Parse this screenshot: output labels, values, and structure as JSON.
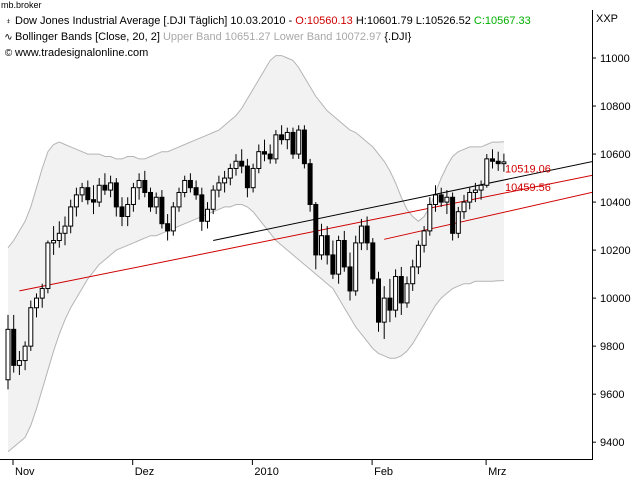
{
  "window": {
    "title": "mb.broker"
  },
  "header": {
    "line1": {
      "name": "Dow Jones Industrial Average [.DJI  Täglich] 10.03.2010 - ",
      "open": "O:10560.13",
      "high": " H:10601.79",
      "low": " L:10526.52",
      "close": " C:10567.33"
    },
    "line2": {
      "name": "Bollinger Bands [Close, 20, 2]",
      "values": " Upper Band 10651.27 Lower Band 10072.97",
      "symbol": " {.DJI}"
    },
    "line3": {
      "url": "www.tradesignalonline.com"
    }
  },
  "axis_label": "XXP",
  "chart_data": {
    "type": "candlestick",
    "ylim": [
      9330,
      11200
    ],
    "yticks": [
      9400,
      9600,
      9800,
      10000,
      10200,
      10400,
      10600,
      10800,
      11000
    ],
    "xtick_labels": [
      {
        "label": "Nov",
        "index": 0
      },
      {
        "label": "Dez",
        "index": 21
      },
      {
        "label": "2010",
        "index": 42
      },
      {
        "label": "Feb",
        "index": 63
      },
      {
        "label": "Mrz",
        "index": 83
      }
    ],
    "candles": [
      [
        9660,
        9930,
        9620,
        9870
      ],
      [
        9870,
        9930,
        9690,
        9720
      ],
      [
        9720,
        9780,
        9680,
        9740
      ],
      [
        9740,
        9820,
        9700,
        9800
      ],
      [
        9800,
        9990,
        9780,
        9960
      ],
      [
        9960,
        10020,
        9920,
        10000
      ],
      [
        10000,
        10060,
        9960,
        10040
      ],
      [
        10040,
        10240,
        10020,
        10230
      ],
      [
        10230,
        10300,
        10180,
        10240
      ],
      [
        10240,
        10320,
        10210,
        10270
      ],
      [
        10270,
        10340,
        10220,
        10300
      ],
      [
        10300,
        10410,
        10270,
        10380
      ],
      [
        10380,
        10460,
        10340,
        10430
      ],
      [
        10430,
        10480,
        10400,
        10460
      ],
      [
        10460,
        10490,
        10390,
        10410
      ],
      [
        10410,
        10470,
        10350,
        10400
      ],
      [
        10400,
        10500,
        10380,
        10470
      ],
      [
        10470,
        10520,
        10430,
        10450
      ],
      [
        10450,
        10510,
        10420,
        10480
      ],
      [
        10480,
        10500,
        10340,
        10380
      ],
      [
        10380,
        10420,
        10300,
        10340
      ],
      [
        10340,
        10420,
        10300,
        10390
      ],
      [
        10390,
        10480,
        10360,
        10460
      ],
      [
        10460,
        10520,
        10410,
        10490
      ],
      [
        10490,
        10530,
        10420,
        10440
      ],
      [
        10440,
        10460,
        10360,
        10380
      ],
      [
        10380,
        10440,
        10350,
        10420
      ],
      [
        10420,
        10450,
        10290,
        10310
      ],
      [
        10310,
        10350,
        10240,
        10280
      ],
      [
        10280,
        10400,
        10260,
        10380
      ],
      [
        10380,
        10460,
        10360,
        10440
      ],
      [
        10440,
        10510,
        10420,
        10490
      ],
      [
        10490,
        10520,
        10440,
        10460
      ],
      [
        10460,
        10490,
        10410,
        10430
      ],
      [
        10430,
        10460,
        10280,
        10320
      ],
      [
        10320,
        10400,
        10290,
        10370
      ],
      [
        10370,
        10470,
        10350,
        10450
      ],
      [
        10450,
        10510,
        10420,
        10480
      ],
      [
        10480,
        10530,
        10440,
        10500
      ],
      [
        10500,
        10560,
        10470,
        10540
      ],
      [
        10540,
        10600,
        10510,
        10570
      ],
      [
        10570,
        10620,
        10520,
        10550
      ],
      [
        10550,
        10580,
        10420,
        10460
      ],
      [
        10460,
        10560,
        10440,
        10540
      ],
      [
        10540,
        10640,
        10520,
        10610
      ],
      [
        10610,
        10660,
        10570,
        10600
      ],
      [
        10600,
        10640,
        10560,
        10580
      ],
      [
        10580,
        10700,
        10560,
        10680
      ],
      [
        10680,
        10720,
        10640,
        10660
      ],
      [
        10660,
        10710,
        10620,
        10690
      ],
      [
        10690,
        10710,
        10580,
        10600
      ],
      [
        10600,
        10720,
        10580,
        10700
      ],
      [
        10700,
        10720,
        10540,
        10560
      ],
      [
        10560,
        10580,
        10360,
        10390
      ],
      [
        10390,
        10400,
        10120,
        10180
      ],
      [
        10180,
        10310,
        10160,
        10260
      ],
      [
        10260,
        10300,
        10140,
        10180
      ],
      [
        10180,
        10240,
        10080,
        10100
      ],
      [
        10100,
        10260,
        10060,
        10240
      ],
      [
        10240,
        10280,
        10110,
        10130
      ],
      [
        10130,
        10190,
        9990,
        10030
      ],
      [
        10030,
        10260,
        10010,
        10230
      ],
      [
        10230,
        10330,
        10200,
        10300
      ],
      [
        10300,
        10340,
        10200,
        10230
      ],
      [
        10230,
        10250,
        10060,
        10080
      ],
      [
        10080,
        10110,
        9860,
        9900
      ],
      [
        9900,
        10050,
        9830,
        10000
      ],
      [
        10000,
        10080,
        9900,
        9950
      ],
      [
        9950,
        10120,
        9920,
        10090
      ],
      [
        10090,
        10130,
        9930,
        9980
      ],
      [
        9980,
        10090,
        9960,
        10060
      ],
      [
        10060,
        10160,
        10030,
        10130
      ],
      [
        10130,
        10240,
        10100,
        10220
      ],
      [
        10220,
        10300,
        10190,
        10280
      ],
      [
        10280,
        10420,
        10260,
        10390
      ],
      [
        10390,
        10470,
        10360,
        10430
      ],
      [
        10430,
        10460,
        10380,
        10400
      ],
      [
        10400,
        10450,
        10350,
        10420
      ],
      [
        10420,
        10440,
        10240,
        10270
      ],
      [
        10270,
        10380,
        10250,
        10360
      ],
      [
        10360,
        10430,
        10330,
        10400
      ],
      [
        10400,
        10460,
        10370,
        10440
      ],
      [
        10440,
        10480,
        10400,
        10450
      ],
      [
        10450,
        10490,
        10410,
        10470
      ],
      [
        10470,
        10600,
        10460,
        10580
      ],
      [
        10580,
        10620,
        10540,
        10570
      ],
      [
        10570,
        10610,
        10530,
        10560
      ],
      [
        10560,
        10601.79,
        10526.52,
        10567.33
      ]
    ],
    "bollinger": {
      "upper": [
        10210,
        10240,
        10280,
        10320,
        10380,
        10460,
        10540,
        10610,
        10640,
        10650,
        10640,
        10630,
        10620,
        10610,
        10600,
        10600,
        10600,
        10590,
        10590,
        10580,
        10580,
        10590,
        10590,
        10580,
        10580,
        10590,
        10600,
        10610,
        10610,
        10620,
        10630,
        10640,
        10650,
        10660,
        10670,
        10680,
        10690,
        10700,
        10720,
        10740,
        10760,
        10790,
        10830,
        10870,
        10910,
        10950,
        10990,
        11010,
        11010,
        11000,
        10990,
        10960,
        10920,
        10880,
        10840,
        10810,
        10780,
        10760,
        10740,
        10720,
        10700,
        10690,
        10670,
        10650,
        10630,
        10600,
        10570,
        10530,
        10480,
        10420,
        10370,
        10340,
        10320,
        10340,
        10380,
        10440,
        10500,
        10550,
        10590,
        10610,
        10620,
        10630,
        10630,
        10630,
        10640,
        10650,
        10650,
        10651.27
      ],
      "lower": [
        9360,
        9380,
        9400,
        9420,
        9470,
        9540,
        9620,
        9700,
        9780,
        9850,
        9910,
        9960,
        10000,
        10040,
        10080,
        10110,
        10140,
        10160,
        10180,
        10200,
        10210,
        10220,
        10230,
        10240,
        10250,
        10260,
        10260,
        10270,
        10280,
        10290,
        10300,
        10310,
        10320,
        10330,
        10340,
        10350,
        10360,
        10370,
        10380,
        10380,
        10390,
        10390,
        10380,
        10360,
        10330,
        10300,
        10270,
        10240,
        10220,
        10200,
        10180,
        10160,
        10140,
        10120,
        10100,
        10080,
        10060,
        10040,
        10000,
        9960,
        9920,
        9880,
        9850,
        9820,
        9790,
        9770,
        9760,
        9750,
        9750,
        9760,
        9780,
        9810,
        9850,
        9890,
        9930,
        9970,
        10000,
        10020,
        10040,
        10050,
        10060,
        10060,
        10070,
        10070,
        10070,
        10070,
        10072,
        10072.97
      ]
    },
    "trendlines": [
      {
        "color": "#000000",
        "from": [
          36,
          10240
        ],
        "to": [
          121,
          10660
        ]
      },
      {
        "color": "#d00000",
        "from": [
          2,
          10030
        ],
        "to": [
          121,
          10600
        ]
      },
      {
        "color": "#d00000",
        "from": [
          66,
          10245
        ],
        "to": [
          121,
          10540
        ]
      }
    ],
    "price_labels": [
      {
        "text": "10519.06",
        "value": 10519.06
      },
      {
        "text": "10459.56",
        "value": 10459.56
      }
    ],
    "colors": {
      "band_fill": "#f2f2f2",
      "band_edge": "#b4b4b4",
      "candle": "#000000",
      "accent": "#d00000"
    }
  }
}
